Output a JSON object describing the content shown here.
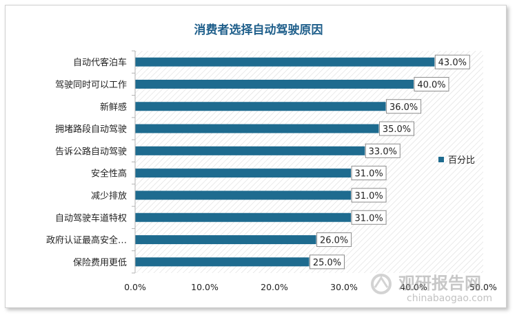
{
  "colors": {
    "bar": "#1e6b8f",
    "title": "#1f5f8b",
    "axis": "#b0b0b0",
    "hatch": "#d9d9d9"
  },
  "watermark": {
    "main": "观研报告网",
    "sub": "chinabaogao.com"
  },
  "chart_data": {
    "type": "bar",
    "orientation": "horizontal",
    "title": "消费者选择自动驾驶原因",
    "categories": [
      "自动代客泊车",
      "驾驶同时可以工作",
      "新鲜感",
      "拥堵路段自动驾驶",
      "告诉公路自动驾驶",
      "安全性高",
      "减少排放",
      "自动驾驶车道特权",
      "政府认证最高安全…",
      "保险费用更低"
    ],
    "series": [
      {
        "name": "百分比",
        "values": [
          43.0,
          40.0,
          36.0,
          35.0,
          33.0,
          31.0,
          31.0,
          31.0,
          26.0,
          25.0
        ],
        "data_labels": [
          "43.0%",
          "40.0%",
          "36.0%",
          "35.0%",
          "33.0%",
          "31.0%",
          "31.0%",
          "31.0%",
          "26.0%",
          "25.0%"
        ]
      }
    ],
    "xlim": [
      0,
      50
    ],
    "xticks": [
      "0.0%",
      "10.0%",
      "20.0%",
      "30.0%",
      "40.0%",
      "50.0%"
    ],
    "legend_position": "right",
    "grid": false
  }
}
